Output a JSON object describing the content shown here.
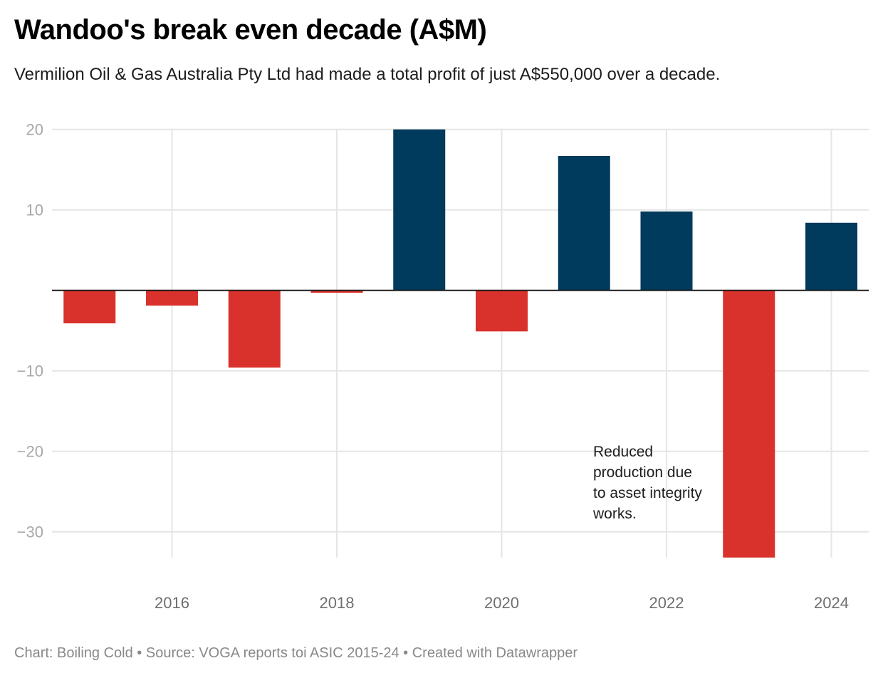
{
  "header": {
    "title": "Wandoo's break even decade (A$M)",
    "subtitle": "Vermilion Oil & Gas Australia Pty Ltd had made a total profit of just A$550,000 over a decade."
  },
  "footer": {
    "text": "Chart: Boiling Cold • Source: VOGA reports toi ASIC 2015-24 • Created with Datawrapper"
  },
  "colors": {
    "positive": "#003a5d",
    "negative": "#d9312b",
    "grid": "#e5e5e5",
    "baseline": "#1d1d1d"
  },
  "chart_data": {
    "type": "bar",
    "title": "Wandoo's break even decade (A$M)",
    "subtitle": "Vermilion Oil & Gas Australia Pty Ltd had made a total profit of just A$550,000 over a decade.",
    "xlabel": "",
    "ylabel": "",
    "categories": [
      2015,
      2016,
      2017,
      2018,
      2019,
      2020,
      2021,
      2022,
      2023,
      2024
    ],
    "values": [
      -4.1,
      -1.9,
      -9.6,
      -0.3,
      20.0,
      -5.1,
      16.7,
      9.8,
      -33.2,
      8.4
    ],
    "ylim": [
      -33.2,
      20
    ],
    "yticks": [
      20,
      10,
      -10,
      -20,
      -30
    ],
    "ytick_labels": [
      "20",
      "10",
      "−10",
      "−20",
      "−30"
    ],
    "xticks": [
      2016,
      2018,
      2020,
      2022,
      2024
    ],
    "xtick_labels": [
      "2016",
      "2018",
      "2020",
      "2022",
      "2024"
    ],
    "grid": true,
    "annotations": [
      {
        "near_category": 2023,
        "lines": [
          "Reduced",
          "production due",
          "to asset integrity",
          "works."
        ]
      }
    ],
    "source": "VOGA reports toi ASIC 2015-24"
  }
}
